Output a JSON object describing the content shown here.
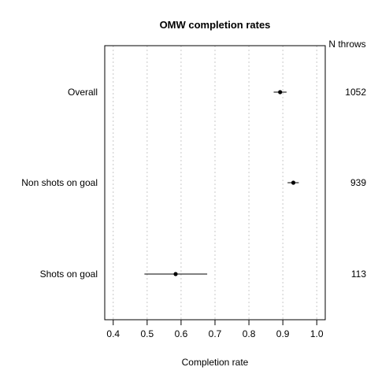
{
  "chart_data": {
    "type": "scatter",
    "title": "OMW completion rates",
    "xlabel": "Completion rate",
    "ylabel": "",
    "xlim": [
      0.375,
      1.025
    ],
    "x_ticks": [
      "0.4",
      "0.5",
      "0.6",
      "0.7",
      "0.8",
      "0.9",
      "1.0"
    ],
    "grid": "vertical dotted",
    "n_header": "N throws",
    "categories": [
      "Overall",
      "Non shots on goal",
      "Shots on goal"
    ],
    "estimates": [
      0.892,
      0.931,
      0.584
    ],
    "lower": [
      0.873,
      0.914,
      0.492
    ],
    "upper": [
      0.911,
      0.947,
      0.677
    ],
    "n": [
      "1052",
      "939",
      "113"
    ]
  }
}
